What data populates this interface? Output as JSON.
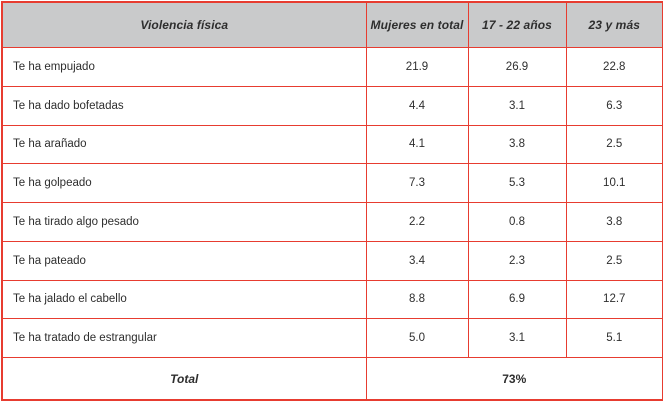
{
  "colors": {
    "border_red": "#e73c30",
    "header_gray": "#c9cacb",
    "text_dark": "#2e2e2e",
    "row_white": "#ffffff"
  },
  "chart_data": {
    "type": "table",
    "title": "Violencia física",
    "columns": [
      "Violencia física",
      "Mujeres en total",
      "17 - 22 años",
      "23 y más"
    ],
    "rows": [
      {
        "label": "Te ha empujado",
        "values": [
          "21.9",
          "26.9",
          "22.8"
        ]
      },
      {
        "label": "Te ha dado bofetadas",
        "values": [
          "4.4",
          "3.1",
          "6.3"
        ]
      },
      {
        "label": "Te ha arañado",
        "values": [
          "4.1",
          "3.8",
          "2.5"
        ]
      },
      {
        "label": "Te ha golpeado",
        "values": [
          "7.3",
          "5.3",
          "10.1"
        ]
      },
      {
        "label": "Te ha tirado algo pesado",
        "values": [
          "2.2",
          "0.8",
          "3.8"
        ]
      },
      {
        "label": "Te ha pateado",
        "values": [
          "3.4",
          "2.3",
          "2.5"
        ]
      },
      {
        "label": "Te ha jalado el cabello",
        "values": [
          "8.8",
          "6.9",
          "12.7"
        ]
      },
      {
        "label": "Te ha tratado de estrangular",
        "values": [
          "5.0",
          "3.1",
          "5.1"
        ]
      }
    ],
    "total_label": "Total",
    "total_value": "73%",
    "layout": {
      "grid": "red-borders",
      "header_style": "gray-bold-italic",
      "total_value_colspan": 3
    }
  }
}
